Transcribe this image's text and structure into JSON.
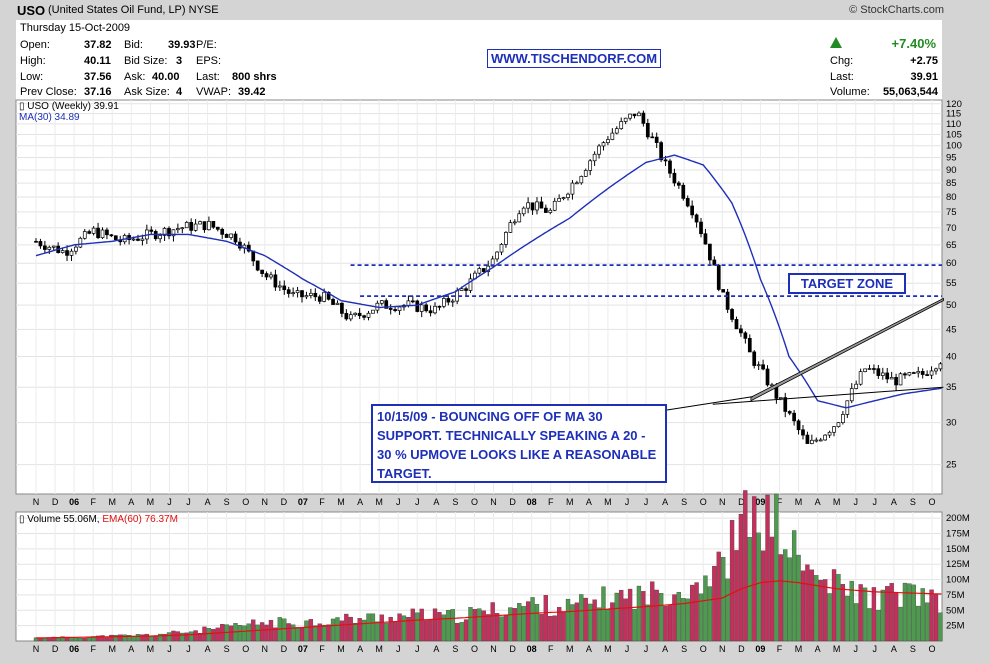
{
  "header": {
    "symbol": "USO",
    "name": "(United States Oil Fund, LP)",
    "exchange": "NYSE",
    "copyright": "© StockCharts.com"
  },
  "quote": {
    "date": "Thursday  15-Oct-2009",
    "open_label": "Open:",
    "open": "37.82",
    "high_label": "High:",
    "high": "40.11",
    "low_label": "Low:",
    "low": "37.56",
    "prevclose_label": "Prev Close:",
    "prevclose": "37.16",
    "bid_label": "Bid:",
    "bid": "39.93",
    "bidsize_label": "Bid Size:",
    "bidsize": "3",
    "ask_label": "Ask:",
    "ask": "40.00",
    "asksize_label": "Ask Size:",
    "asksize": "4",
    "pe_label": "P/E:",
    "eps_label": "EPS:",
    "last_label": "Last:",
    "last_shares": "800 shrs",
    "vwap_label": "VWAP:",
    "vwap": "39.42",
    "pct_change": "+7.40%",
    "chg_label": "Chg:",
    "chg": "+2.75",
    "last2_label": "Last:",
    "last": "39.91",
    "volume_label": "Volume:",
    "volume": "55,063,544"
  },
  "site_label": "WWW.TISCHENDORF.COM",
  "annotation": "10/15/09 - BOUNCING OFF OF MA 30 SUPPORT. TECHNICALLY SPEAKING A 20 - 30 % UPMOVE LOOKS LIKE A REASONABLE TARGET.",
  "target_zone_label": "TARGET ZONE",
  "colors": {
    "up": "#238b23",
    "down": "#000000",
    "ma": "#1e2fb8",
    "vol_up": "#4e9a4e",
    "vol_down": "#c4305c",
    "ema": "#e01010",
    "accent": "#1e2fb8"
  },
  "chart_data": [
    {
      "type": "candlestick",
      "title": "USO (Weekly) 39.91",
      "series": [
        {
          "name": "USO (Weekly) 39.91"
        },
        {
          "name": "MA(30) 34.89"
        }
      ],
      "yscale": "log",
      "ylim": [
        22,
        122
      ],
      "yticks": [
        25,
        30,
        35,
        40,
        45,
        50,
        55,
        60,
        65,
        70,
        75,
        80,
        85,
        90,
        95,
        100,
        105,
        110,
        115,
        120
      ],
      "xticks": [
        "N",
        "D",
        "06",
        "F",
        "M",
        "A",
        "M",
        "J",
        "J",
        "A",
        "S",
        "O",
        "N",
        "D",
        "07",
        "F",
        "M",
        "A",
        "M",
        "J",
        "J",
        "A",
        "S",
        "O",
        "N",
        "D",
        "08",
        "F",
        "M",
        "A",
        "M",
        "J",
        "J",
        "A",
        "S",
        "O",
        "N",
        "D",
        "09",
        "F",
        "M",
        "A",
        "M",
        "J",
        "J",
        "A",
        "S",
        "O"
      ],
      "price_x": [
        0,
        2,
        4,
        6,
        8,
        10,
        12,
        14,
        16,
        18,
        20,
        22,
        24,
        26,
        28,
        30,
        32,
        34,
        36,
        38,
        40,
        42,
        44,
        46,
        47
      ],
      "price_close": [
        66,
        63,
        69,
        66,
        68,
        70,
        71,
        67,
        57,
        52,
        52,
        47,
        50,
        50,
        49,
        54,
        61,
        78,
        75,
        88,
        104,
        116,
        92,
        75,
        52,
        40,
        33,
        27,
        30,
        38,
        36,
        37,
        39.91
      ],
      "close_x": [
        0,
        1.5,
        3,
        4.5,
        6,
        7.5,
        9,
        10.5,
        12,
        13.5,
        15,
        16.5,
        18,
        19.5,
        21,
        22.5,
        24,
        25.5,
        27,
        28.5,
        30,
        31.5,
        33,
        34.5,
        36,
        37.5,
        39,
        40.5,
        42,
        43.5,
        45,
        46.5,
        47.6
      ],
      "ma_x": [
        0,
        2,
        4,
        6,
        8,
        10,
        12,
        14,
        16,
        18,
        20,
        22,
        24,
        26,
        28,
        30,
        32,
        33.5,
        35,
        36.5,
        38,
        39.5,
        41,
        42.5,
        44,
        45.5,
        47.6
      ],
      "ma30": [
        62,
        65,
        66,
        68,
        68,
        66,
        62,
        56,
        51,
        49.5,
        50,
        53,
        59,
        66,
        73,
        83,
        93,
        96,
        92,
        78,
        56,
        40,
        33,
        32,
        33,
        34,
        34.89
      ],
      "target_zone_levels": [
        52,
        59.5
      ],
      "trendlines": [
        {
          "from": [
            37.5,
            33.5
          ],
          "to": [
            47.6,
            51.5
          ]
        },
        {
          "from": [
            37.5,
            33
          ],
          "to": [
            47.6,
            51
          ]
        },
        {
          "from": [
            35.5,
            32.5
          ],
          "to": [
            47.6,
            35
          ]
        }
      ]
    },
    {
      "type": "bar",
      "title": "Volume 55.06M, EMA(60) 76.37M",
      "series": [
        {
          "name": "Volume 55.06M"
        },
        {
          "name": "EMA(60) 76.37M"
        }
      ],
      "ylim": [
        0,
        210
      ],
      "yticks": [
        "25M",
        "50M",
        "75M",
        "100M",
        "125M",
        "150M",
        "175M",
        "200M"
      ],
      "vol_x": [
        0,
        2,
        4,
        6,
        8,
        10,
        12,
        14,
        16,
        18,
        20,
        22,
        24,
        26,
        28,
        30,
        32,
        34,
        36,
        37,
        38,
        39,
        40,
        41,
        42,
        44,
        46,
        47.6
      ],
      "volume": [
        5,
        6,
        8,
        10,
        15,
        22,
        30,
        30,
        35,
        38,
        42,
        40,
        50,
        60,
        55,
        70,
        75,
        85,
        120,
        190,
        200,
        185,
        130,
        100,
        90,
        70,
        80,
        55
      ],
      "ema60": [
        5,
        6,
        7,
        8,
        10,
        14,
        18,
        22,
        26,
        30,
        34,
        37,
        41,
        45,
        48,
        52,
        56,
        61,
        70,
        85,
        95,
        98,
        95,
        90,
        85,
        80,
        78,
        76.37
      ]
    }
  ]
}
